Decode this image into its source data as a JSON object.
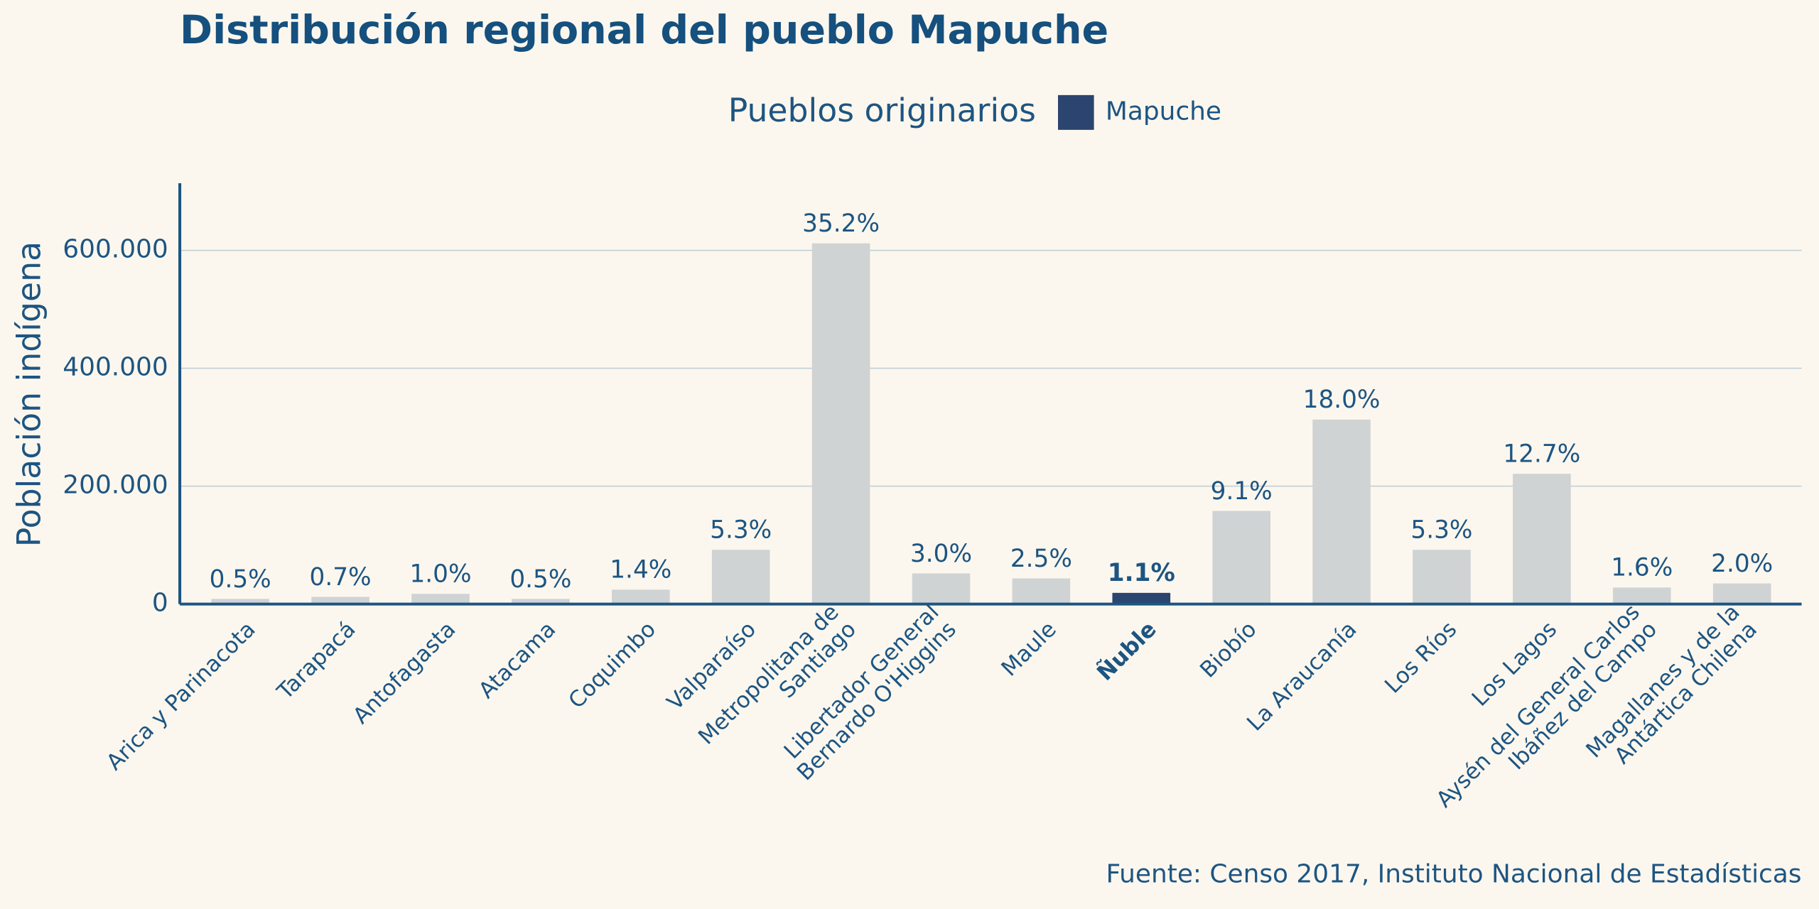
{
  "chart_data": {
    "type": "bar",
    "title": "Distribución regional del pueblo Mapuche",
    "y_label": "Población indígena",
    "source": "Fuente: Censo 2017, Instituto Nacional de Estadísticas",
    "legend": {
      "title": "Pueblos originarios",
      "entries": [
        {
          "name": "Mapuche",
          "color": "#2b4570"
        }
      ]
    },
    "categories": [
      "Arica y Parinacota",
      "Tarapacá",
      "Antofagasta",
      "Atacama",
      "Coquimbo",
      "Valparaíso",
      "Metropolitana de\nSantiago",
      "Libertador General\nBernardo O'Higgins",
      "Maule",
      "Ñuble",
      "Biobío",
      "La Araucanía",
      "Los Ríos",
      "Los Lagos",
      "Aysén del General Carlos\nIbáñez del Campo",
      "Magallanes y de la\nAntártica Chilena"
    ],
    "values": [
      8700,
      12200,
      17400,
      8700,
      24400,
      92000,
      612000,
      52000,
      43500,
      19000,
      158000,
      313000,
      92000,
      221000,
      28000,
      35000
    ],
    "value_labels": [
      "0.5%",
      "0.7%",
      "1.0%",
      "0.5%",
      "1.4%",
      "5.3%",
      "35.2%",
      "3.0%",
      "2.5%",
      "1.1%",
      "9.1%",
      "18.0%",
      "5.3%",
      "12.7%",
      "1.6%",
      "2.0%"
    ],
    "colors": [
      "#d0d3d4",
      "#d0d3d4",
      "#d0d3d4",
      "#d0d3d4",
      "#d0d3d4",
      "#d0d3d4",
      "#d0d3d4",
      "#d0d3d4",
      "#d0d3d4",
      "#2b4570",
      "#d0d3d4",
      "#d0d3d4",
      "#d0d3d4",
      "#d0d3d4",
      "#d0d3d4",
      "#d0d3d4"
    ],
    "ylim": [
      0,
      714000
    ],
    "yticks": [
      0,
      {
        "value": 200000,
        "label": "200.000"
      },
      {
        "value": 400000,
        "label": "400.000"
      },
      {
        "value": 600000,
        "label": "600.000"
      }
    ],
    "grid": true
  }
}
